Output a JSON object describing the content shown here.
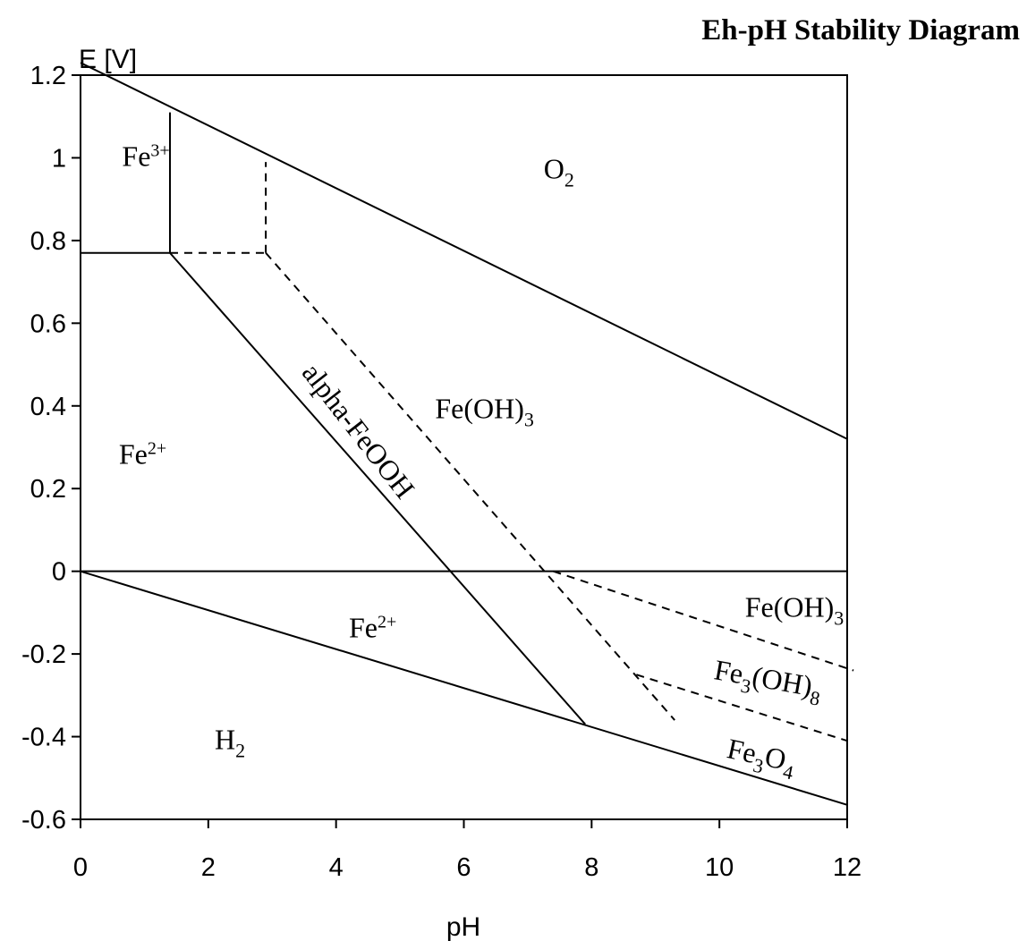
{
  "chart_data": {
    "type": "line",
    "title": "Eh-pH Stability Diagram",
    "xlabel": "pH",
    "ylabel": "E [V]",
    "xlim": [
      0,
      12
    ],
    "ylim": [
      -0.6,
      1.2
    ],
    "x_ticks": [
      0,
      2,
      4,
      6,
      8,
      10,
      12
    ],
    "x_tick_labels": [
      "0",
      "2",
      "4",
      "6",
      "8",
      "10",
      "12"
    ],
    "y_ticks": [
      1.2,
      1,
      0.8,
      0.6,
      0.4,
      0.2,
      0,
      -0.2,
      -0.4,
      -0.6
    ],
    "y_tick_labels": [
      "1.2",
      "1",
      "0.8",
      "0.6",
      "0.4",
      "0.2",
      "0",
      "-0.2",
      "-0.4",
      "-0.6"
    ],
    "grid": false,
    "series": [
      {
        "style": "solid",
        "points": [
          [
            0,
            1.23
          ],
          [
            12,
            0.32
          ]
        ]
      },
      {
        "style": "solid",
        "points": [
          [
            0,
            0.0
          ],
          [
            12,
            -0.565
          ]
        ]
      },
      {
        "style": "solid",
        "points": [
          [
            0,
            0.0
          ],
          [
            12,
            0.0
          ]
        ]
      },
      {
        "style": "solid",
        "points": [
          [
            0,
            0.77
          ],
          [
            1.4,
            0.77
          ]
        ]
      },
      {
        "style": "solid",
        "points": [
          [
            1.4,
            0.77
          ],
          [
            1.4,
            1.11
          ]
        ]
      },
      {
        "style": "solid",
        "points": [
          [
            1.4,
            0.77
          ],
          [
            7.9,
            -0.37
          ]
        ]
      },
      {
        "style": "dashed",
        "points": [
          [
            1.4,
            0.77
          ],
          [
            2.9,
            0.77
          ]
        ]
      },
      {
        "style": "dashed",
        "points": [
          [
            2.9,
            0.77
          ],
          [
            2.9,
            0.99
          ]
        ]
      },
      {
        "style": "dashed",
        "points": [
          [
            2.9,
            0.77
          ],
          [
            9.3,
            -0.36
          ]
        ]
      },
      {
        "style": "dashed",
        "points": [
          [
            7.4,
            0.0
          ],
          [
            12.1,
            -0.24
          ]
        ]
      },
      {
        "style": "dashed",
        "points": [
          [
            8.7,
            -0.25
          ],
          [
            12.0,
            -0.41
          ]
        ]
      }
    ],
    "annotations": [
      {
        "x": 0.65,
        "y": 0.98,
        "base": "Fe",
        "sup": "3+",
        "sub": ""
      },
      {
        "x": 7.25,
        "y": 0.95,
        "base": "O",
        "sup": "",
        "sub": "2"
      },
      {
        "x": 0.6,
        "y": 0.26,
        "base": "Fe",
        "sup": "2+",
        "sub": ""
      },
      {
        "x": 5.55,
        "y": 0.37,
        "base": "Fe(OH)",
        "sup": "",
        "sub": "3"
      },
      {
        "x": 4.2,
        "y": -0.16,
        "base": "Fe",
        "sup": "2+",
        "sub": ""
      },
      {
        "x": 10.4,
        "y": -0.11,
        "base": "Fe(OH)",
        "sup": "",
        "sub": "3"
      },
      {
        "x": 9.9,
        "y": -0.26,
        "base": "Fe",
        "sup": "",
        "sub": "3",
        "tail": "(OH)",
        "tail_sub": "8",
        "rotate": 10
      },
      {
        "x": 10.1,
        "y": -0.45,
        "base": "Fe",
        "sup": "",
        "sub": "3",
        "tail": "O",
        "tail_sub": "4",
        "rotate": 12
      },
      {
        "x": 2.1,
        "y": -0.43,
        "base": "H",
        "sup": "",
        "sub": "2"
      },
      {
        "x": 3.45,
        "y": 0.48,
        "base": "alpha-FeOOH",
        "sup": "",
        "sub": "",
        "rotate": 52
      }
    ]
  }
}
